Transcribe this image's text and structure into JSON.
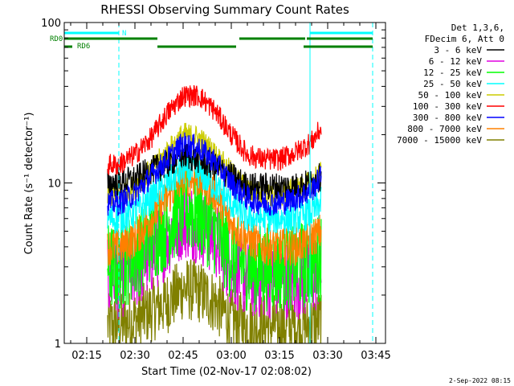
{
  "chart_data": {
    "type": "line",
    "title": "RHESSI Observing Summary Count Rates",
    "xlabel": "Start Time (02-Nov-17 02:08:02)",
    "ylabel": "Count Rate (s⁻¹ detector⁻¹)",
    "x_unit": "minutes after 02:00 UT",
    "xlim": [
      8,
      108
    ],
    "ylim": [
      1,
      100
    ],
    "yscale": "log",
    "x_ticks": [
      {
        "label": "02:15",
        "value": 15
      },
      {
        "label": "02:30",
        "value": 30
      },
      {
        "label": "02:45",
        "value": 45
      },
      {
        "label": "03:00",
        "value": 60
      },
      {
        "label": "03:15",
        "value": 75
      },
      {
        "label": "03:30",
        "value": 90
      },
      {
        "label": "03:45",
        "value": 105
      }
    ],
    "y_ticks": [
      {
        "label": "1",
        "value": 1
      },
      {
        "label": "10",
        "value": 10
      },
      {
        "label": "100",
        "value": 100
      }
    ],
    "legend_header": [
      "Det 1,3,6,",
      "FDecim 6, Att 0"
    ],
    "legend_position": "right",
    "footer": "2-Sep-2022 08:15",
    "data_start": 21.5,
    "data_end": 88,
    "time_samples": [
      21.5,
      25,
      30,
      35,
      40,
      45,
      50,
      55,
      60,
      65,
      70,
      75,
      80,
      85,
      88
    ],
    "series": [
      {
        "name": "3 - 6 keV",
        "color": "#000000",
        "values": [
          10,
          10,
          10.5,
          12,
          13,
          15,
          14,
          12.5,
          11,
          9.5,
          9.5,
          9.5,
          9.5,
          10,
          11
        ]
      },
      {
        "name": "6 - 12 keV",
        "color": "#e000e0",
        "values": [
          2.5,
          2.5,
          2.8,
          3.5,
          4.5,
          6,
          5.5,
          4.5,
          3,
          2.5,
          2.5,
          2.5,
          2.5,
          2.5,
          3
        ]
      },
      {
        "name": "12 - 25 keV",
        "color": "#00ff00",
        "values": [
          3,
          3,
          3.5,
          4.5,
          5.5,
          7,
          6.5,
          5,
          3.5,
          3,
          3,
          3,
          3,
          3.2,
          3.5
        ]
      },
      {
        "name": "25 - 50 keV",
        "color": "#00ffff",
        "values": [
          6,
          6,
          6.5,
          8,
          10,
          12,
          11.5,
          9.5,
          7.5,
          6,
          6,
          6,
          6,
          6.5,
          7.5
        ]
      },
      {
        "name": "50 - 100 keV",
        "color": "#cccc00",
        "values": [
          8.5,
          8.5,
          9.5,
          12,
          15.5,
          20,
          19,
          15,
          11.5,
          9,
          8.5,
          8.5,
          9,
          10,
          12
        ]
      },
      {
        "name": "100 - 300 keV",
        "color": "#ff0000",
        "values": [
          13,
          13,
          15,
          19,
          27,
          35,
          35,
          28,
          20,
          15,
          14,
          14,
          15.5,
          18,
          22
        ]
      },
      {
        "name": "300 - 800 keV",
        "color": "#0000ff",
        "values": [
          7.5,
          7.5,
          8.5,
          11,
          14,
          17.5,
          16.5,
          13.5,
          10,
          8,
          7.5,
          7.5,
          8,
          9,
          11
        ]
      },
      {
        "name": "800 - 7000 keV",
        "color": "#ff8000",
        "values": [
          4,
          4,
          4.5,
          6,
          8,
          11,
          10.5,
          8.5,
          5.5,
          4.5,
          4,
          4,
          4,
          4.5,
          5
        ]
      },
      {
        "name": "7000 - 15000 keV",
        "color": "#808000",
        "values": [
          1.3,
          1.3,
          1.4,
          1.6,
          1.8,
          2.2,
          2.1,
          1.8,
          1.4,
          1.3,
          1.3,
          1.3,
          1.3,
          1.3,
          1.4
        ]
      }
    ],
    "flags": [
      {
        "name": "N",
        "color": "#00ffff",
        "segments": [
          [
            8,
            25
          ],
          [
            84.5,
            104
          ]
        ],
        "boundaries": [
          8,
          25,
          84.5,
          104
        ]
      },
      {
        "name": "RD0",
        "color": "#008000",
        "segments": [
          [
            8,
            37
          ],
          [
            62.5,
            83
          ],
          [
            83.5,
            104
          ]
        ]
      },
      {
        "name": "RD6",
        "color": "#008000",
        "segments": [
          [
            8,
            10.5
          ],
          [
            37,
            61.5
          ],
          [
            82.5,
            104
          ]
        ]
      }
    ]
  }
}
